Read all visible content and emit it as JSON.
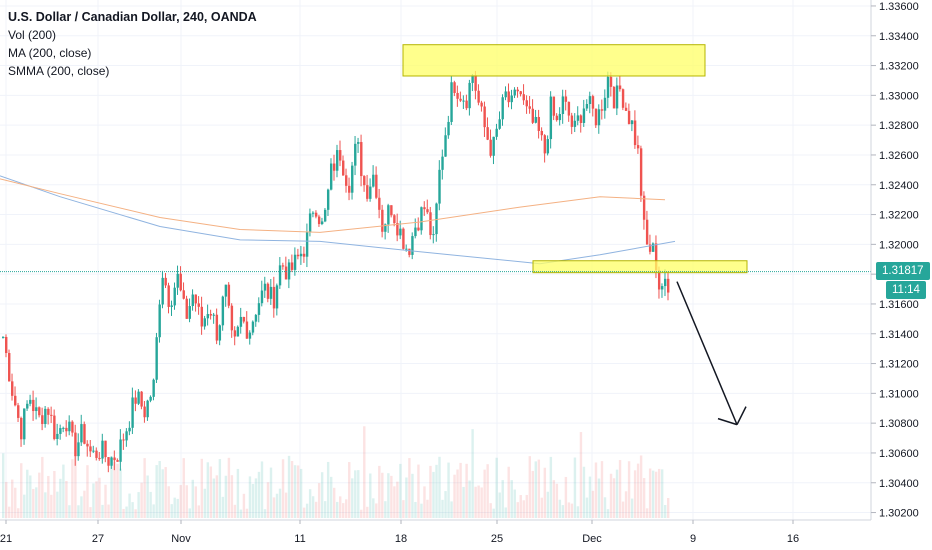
{
  "legend": {
    "title": "U.S. Dollar / Canadian Dollar, 240, OANDA",
    "indicators": [
      "Vol (200)",
      "MA (200, close)",
      "SMMA (200, close)"
    ]
  },
  "price_axis": {
    "ticks": [
      "1.33600",
      "1.33400",
      "1.33200",
      "1.33000",
      "1.32800",
      "1.32600",
      "1.32400",
      "1.32200",
      "1.32000",
      "1.31800",
      "1.31600",
      "1.31400",
      "1.31200",
      "1.31000",
      "1.30800",
      "1.30600",
      "1.30400",
      "1.30200"
    ],
    "last_price": "1.31817",
    "countdown": "11:14"
  },
  "time_axis": {
    "labels": [
      "21",
      "27",
      "Nov",
      "11",
      "18",
      "25",
      "Dec",
      "9",
      "16"
    ]
  },
  "colors": {
    "up": "#26a69a",
    "down": "#ef5350",
    "ma": "#90b4e0",
    "smma": "#f4b183",
    "zone_fill": "#ffff66",
    "zone_border": "#b5b500",
    "price_tag": "#26a69a"
  },
  "chart_data": {
    "type": "candlestick",
    "symbol": "USD/CAD",
    "timeframe": "240",
    "source": "OANDA",
    "ylim": [
      1.3015,
      1.3364
    ],
    "x_range": [
      "21",
      "16"
    ],
    "price_path": [
      [
        1.3138,
        1.3103,
        1.3075,
        1.3098,
        1.3082,
        1.3092,
        1.307,
        1.3085,
        1.3062,
        1.3074,
        1.3058,
        1.3062,
        1.3055,
        1.306,
        1.3078,
        1.3098,
        1.3088,
        1.3105
      ],
      [
        1.3105,
        1.3185,
        1.3162,
        1.3178,
        1.315,
        1.3168,
        1.3145,
        1.316,
        1.314,
        1.317,
        1.3128,
        1.315,
        1.3142,
        1.316,
        1.317,
        1.3162,
        1.3188,
        1.318
      ],
      [
        1.318,
        1.319,
        1.32,
        1.323,
        1.321,
        1.325,
        1.3262,
        1.324,
        1.3268,
        1.3235,
        1.3248,
        1.3212,
        1.3226,
        1.321,
        1.3196,
        1.3215,
        1.3225,
        1.32
      ],
      [
        1.32,
        1.3252,
        1.328,
        1.331,
        1.3302,
        1.3298,
        1.3315,
        1.3292,
        1.3275,
        1.3262,
        1.3282,
        1.33,
        1.3292,
        1.3306,
        1.329,
        1.3282,
        1.3275,
        1.3262
      ],
      [
        1.3262,
        1.3292,
        1.328,
        1.3296,
        1.3288,
        1.3275,
        1.3287,
        1.3296,
        1.329,
        1.3284,
        1.3298,
        1.3315,
        1.3296,
        1.3305,
        1.329,
        1.328,
        1.326,
        1.321
      ],
      [
        1.321,
        1.3195,
        1.3198,
        1.319,
        1.317,
        1.3175,
        1.3165,
        1.3172
      ]
    ],
    "volume_range": [
      0,
      1
    ],
    "moving_averages": {
      "MA (200, close)": [
        [
          0,
          1.3246
        ],
        [
          60,
          1.3232
        ],
        [
          160,
          1.3212
        ],
        [
          240,
          1.3203
        ],
        [
          320,
          1.3202
        ],
        [
          420,
          1.3195
        ],
        [
          540,
          1.3187
        ],
        [
          600,
          1.3193
        ],
        [
          675,
          1.3202
        ]
      ],
      "SMMA (200, close)": [
        [
          0,
          1.3244
        ],
        [
          60,
          1.3234
        ],
        [
          160,
          1.3218
        ],
        [
          240,
          1.321
        ],
        [
          320,
          1.3208
        ],
        [
          420,
          1.3215
        ],
        [
          520,
          1.3225
        ],
        [
          600,
          1.3232
        ],
        [
          665,
          1.323
        ]
      ]
    },
    "resistance_zone": [
      1.3313,
      1.3334
    ],
    "support_zone": [
      1.3181,
      1.3189
    ],
    "arrow": {
      "from": 1.3175,
      "to": 1.3079,
      "direction": "down"
    }
  }
}
